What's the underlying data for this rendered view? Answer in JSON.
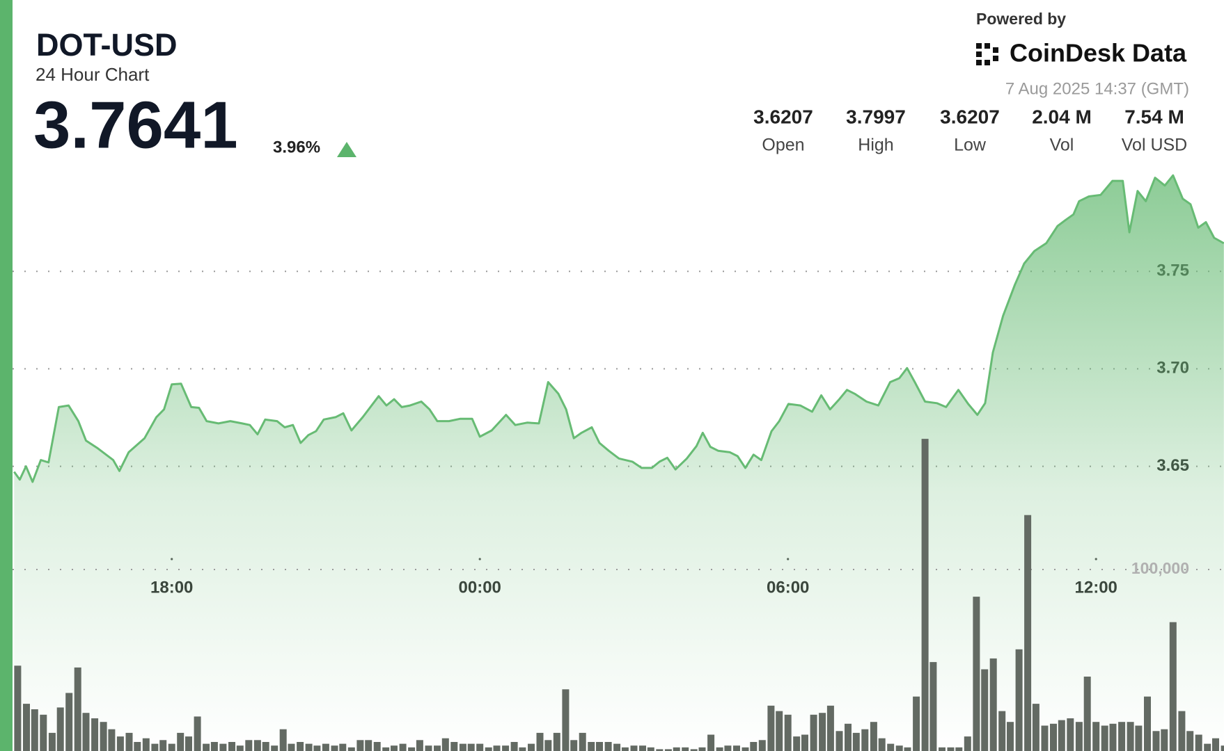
{
  "header": {
    "ticker": "DOT-USD",
    "subtitle": "24 Hour Chart",
    "price": "3.7641",
    "change": "3.96%",
    "powered_by": "Powered by",
    "brand": "CoinDesk Data",
    "timestamp": "7 Aug 2025 14:37 (GMT)",
    "stats": [
      {
        "value": "3.6207",
        "label": "Open"
      },
      {
        "value": "3.7997",
        "label": "High"
      },
      {
        "value": "3.6207",
        "label": "Low"
      },
      {
        "value": "2.04 M",
        "label": "Vol"
      },
      {
        "value": "7.54 M",
        "label": "Vol USD"
      }
    ]
  },
  "chart_data": [
    {
      "type": "area",
      "color": "#67bb74",
      "x": [
        14.93,
        15.04,
        15.16,
        15.29,
        15.45,
        15.6,
        15.8,
        15.99,
        16.18,
        16.33,
        16.56,
        16.86,
        16.98,
        17.16,
        17.47,
        17.7,
        17.85,
        18.0,
        18.18,
        18.38,
        18.53,
        18.68,
        18.91,
        19.14,
        19.37,
        19.52,
        19.67,
        19.82,
        20.05,
        20.2,
        20.36,
        20.51,
        20.66,
        20.81,
        20.96,
        21.19,
        21.34,
        21.5,
        21.72,
        22.03,
        22.18,
        22.33,
        22.48,
        22.64,
        22.86,
        23.02,
        23.17,
        23.4,
        23.62,
        23.85,
        24.0,
        24.23,
        24.51,
        24.69,
        24.92,
        25.15,
        25.33,
        25.53,
        25.68,
        25.83,
        25.98,
        26.18,
        26.33,
        26.51,
        26.71,
        26.97,
        27.15,
        27.35,
        27.5,
        27.65,
        27.81,
        28.03,
        28.22,
        28.34,
        28.49,
        28.64,
        28.87,
        29.02,
        29.17,
        29.33,
        29.48,
        29.68,
        29.83,
        30.01,
        30.24,
        30.47,
        30.65,
        30.82,
        31.0,
        31.15,
        31.3,
        31.53,
        31.76,
        31.99,
        32.17,
        32.32,
        32.47,
        32.67,
        32.9,
        33.08,
        33.32,
        33.51,
        33.69,
        33.84,
        33.99,
        34.19,
        34.42,
        34.6,
        34.8,
        35.03,
        35.25,
        35.41,
        35.56,
        35.67,
        35.86,
        36.09,
        36.32,
        36.52,
        36.65,
        36.81,
        36.97,
        37.15,
        37.34,
        37.5,
        37.69,
        37.84,
        37.99,
        38.14,
        38.3,
        38.49
      ],
      "values": [
        3.6472,
        3.6432,
        3.65,
        3.642,
        3.6532,
        3.652,
        3.6804,
        3.6812,
        3.6732,
        3.6632,
        3.6592,
        3.6532,
        3.6476,
        3.6572,
        3.6644,
        3.6752,
        3.6792,
        3.692,
        3.6924,
        3.6804,
        3.68,
        3.6732,
        3.672,
        3.6732,
        3.672,
        3.6712,
        3.6664,
        3.674,
        3.6732,
        3.67,
        3.6712,
        3.662,
        3.666,
        3.668,
        3.674,
        3.6752,
        3.6772,
        3.6684,
        3.6752,
        3.686,
        3.6812,
        3.6844,
        3.6804,
        3.6812,
        3.6832,
        3.6792,
        3.6732,
        3.6732,
        3.6744,
        3.6744,
        3.6652,
        3.6684,
        3.6764,
        3.6712,
        3.6724,
        3.672,
        3.6932,
        3.6872,
        3.6792,
        3.6644,
        3.6672,
        3.67,
        3.662,
        3.658,
        3.654,
        3.6524,
        3.6492,
        3.6492,
        3.6524,
        3.6544,
        3.6484,
        3.654,
        3.6604,
        3.6672,
        3.66,
        3.658,
        3.6572,
        3.6552,
        3.6492,
        3.656,
        3.6532,
        3.668,
        3.6732,
        3.682,
        3.6812,
        3.678,
        3.6864,
        3.6792,
        3.6844,
        3.6892,
        3.6872,
        3.6832,
        3.6812,
        3.6932,
        3.6952,
        3.7004,
        3.6932,
        3.6832,
        3.6824,
        3.6804,
        3.6892,
        3.682,
        3.6764,
        3.6824,
        3.7084,
        3.7272,
        3.7432,
        3.754,
        3.7604,
        3.7644,
        3.7732,
        3.7764,
        3.7792,
        3.786,
        3.7884,
        3.7892,
        3.7964,
        3.7964,
        3.77,
        3.7912,
        3.786,
        3.798,
        3.794,
        3.7992,
        3.7872,
        3.7844,
        3.7724,
        3.7752,
        3.7672,
        3.7644
      ],
      "xlim": [
        14.93,
        38.49
      ],
      "xticks": [
        {
          "value": 18,
          "label": "18:00"
        },
        {
          "value": 24,
          "label": "00:00"
        },
        {
          "value": 30,
          "label": "06:00"
        },
        {
          "value": 36,
          "label": "12:00"
        }
      ],
      "ylim": [
        3.504,
        3.8
      ],
      "yticks": [
        3.65,
        {
          "value": 3.7,
          "label": "3.70"
        },
        3.75
      ],
      "grid": true
    },
    {
      "type": "bar",
      "color": "#636a63",
      "x": [
        15.0,
        15.17,
        15.33,
        15.5,
        15.67,
        15.83,
        16.0,
        16.17,
        16.33,
        16.5,
        16.67,
        16.83,
        17.0,
        17.17,
        17.33,
        17.5,
        17.67,
        17.83,
        18.0,
        18.17,
        18.33,
        18.5,
        18.67,
        18.83,
        19.0,
        19.17,
        19.33,
        19.5,
        19.67,
        19.83,
        20.0,
        20.17,
        20.33,
        20.5,
        20.67,
        20.83,
        21.0,
        21.17,
        21.33,
        21.5,
        21.67,
        21.83,
        22.0,
        22.17,
        22.33,
        22.5,
        22.67,
        22.83,
        23.0,
        23.17,
        23.33,
        23.5,
        23.67,
        23.83,
        24.0,
        24.17,
        24.33,
        24.5,
        24.67,
        24.83,
        25.0,
        25.17,
        25.33,
        25.5,
        25.67,
        25.83,
        26.0,
        26.17,
        26.33,
        26.5,
        26.67,
        26.83,
        27.0,
        27.17,
        27.33,
        27.5,
        27.67,
        27.83,
        28.0,
        28.17,
        28.33,
        28.5,
        28.67,
        28.83,
        29.0,
        29.17,
        29.33,
        29.5,
        29.67,
        29.83,
        30.0,
        30.17,
        30.33,
        30.5,
        30.67,
        30.83,
        31.0,
        31.17,
        31.33,
        31.5,
        31.67,
        31.83,
        32.0,
        32.17,
        32.33,
        32.5,
        32.67,
        32.83,
        33.0,
        33.17,
        33.33,
        33.5,
        33.67,
        33.83,
        34.0,
        34.17,
        34.33,
        34.5,
        34.67,
        34.83,
        35.0,
        35.17,
        35.33,
        35.5,
        35.67,
        35.83,
        36.0,
        36.17,
        36.33,
        36.5,
        36.67,
        36.83,
        37.0,
        37.17,
        37.33,
        37.5,
        37.67,
        37.83,
        38.0,
        38.17,
        38.33,
        38.5
      ],
      "values": [
        47000,
        26000,
        23000,
        20000,
        10000,
        24000,
        32000,
        46000,
        21000,
        18000,
        16000,
        12000,
        8000,
        10000,
        5000,
        7000,
        4000,
        6000,
        4000,
        10000,
        8000,
        19000,
        4000,
        5000,
        4000,
        5000,
        3000,
        6000,
        6000,
        5000,
        3000,
        12000,
        4000,
        5000,
        4000,
        3000,
        4000,
        3000,
        4000,
        2000,
        6000,
        6000,
        5000,
        2000,
        3000,
        4000,
        2000,
        6000,
        3000,
        3000,
        7000,
        5000,
        4000,
        4000,
        4000,
        2000,
        3000,
        3000,
        5000,
        2000,
        4000,
        10000,
        6000,
        10000,
        34000,
        6000,
        10000,
        5000,
        5000,
        5000,
        4000,
        2000,
        3000,
        3000,
        2000,
        1000,
        1000,
        2000,
        2000,
        1000,
        2000,
        9000,
        2000,
        3000,
        3000,
        2000,
        5000,
        6000,
        25000,
        22000,
        20000,
        8000,
        9000,
        20000,
        21000,
        25000,
        11000,
        15000,
        10000,
        12000,
        16000,
        7000,
        4000,
        3000,
        2000,
        30000,
        172000,
        49000,
        2000,
        2000,
        2000,
        8000,
        85000,
        45000,
        51000,
        22000,
        16000,
        56000,
        130000,
        26000,
        14000,
        15000,
        17000,
        18000,
        16000,
        41000,
        16000,
        14000,
        15000,
        16000,
        16000,
        14000,
        30000,
        11000,
        12000,
        71000,
        22000,
        11000,
        9000,
        4000,
        7000,
        3000
      ],
      "xlim": [
        14.93,
        38.49
      ],
      "ylim": [
        0,
        200000
      ],
      "yticks": [
        {
          "value": 100000,
          "label": "100,000"
        }
      ],
      "grid": true
    }
  ]
}
